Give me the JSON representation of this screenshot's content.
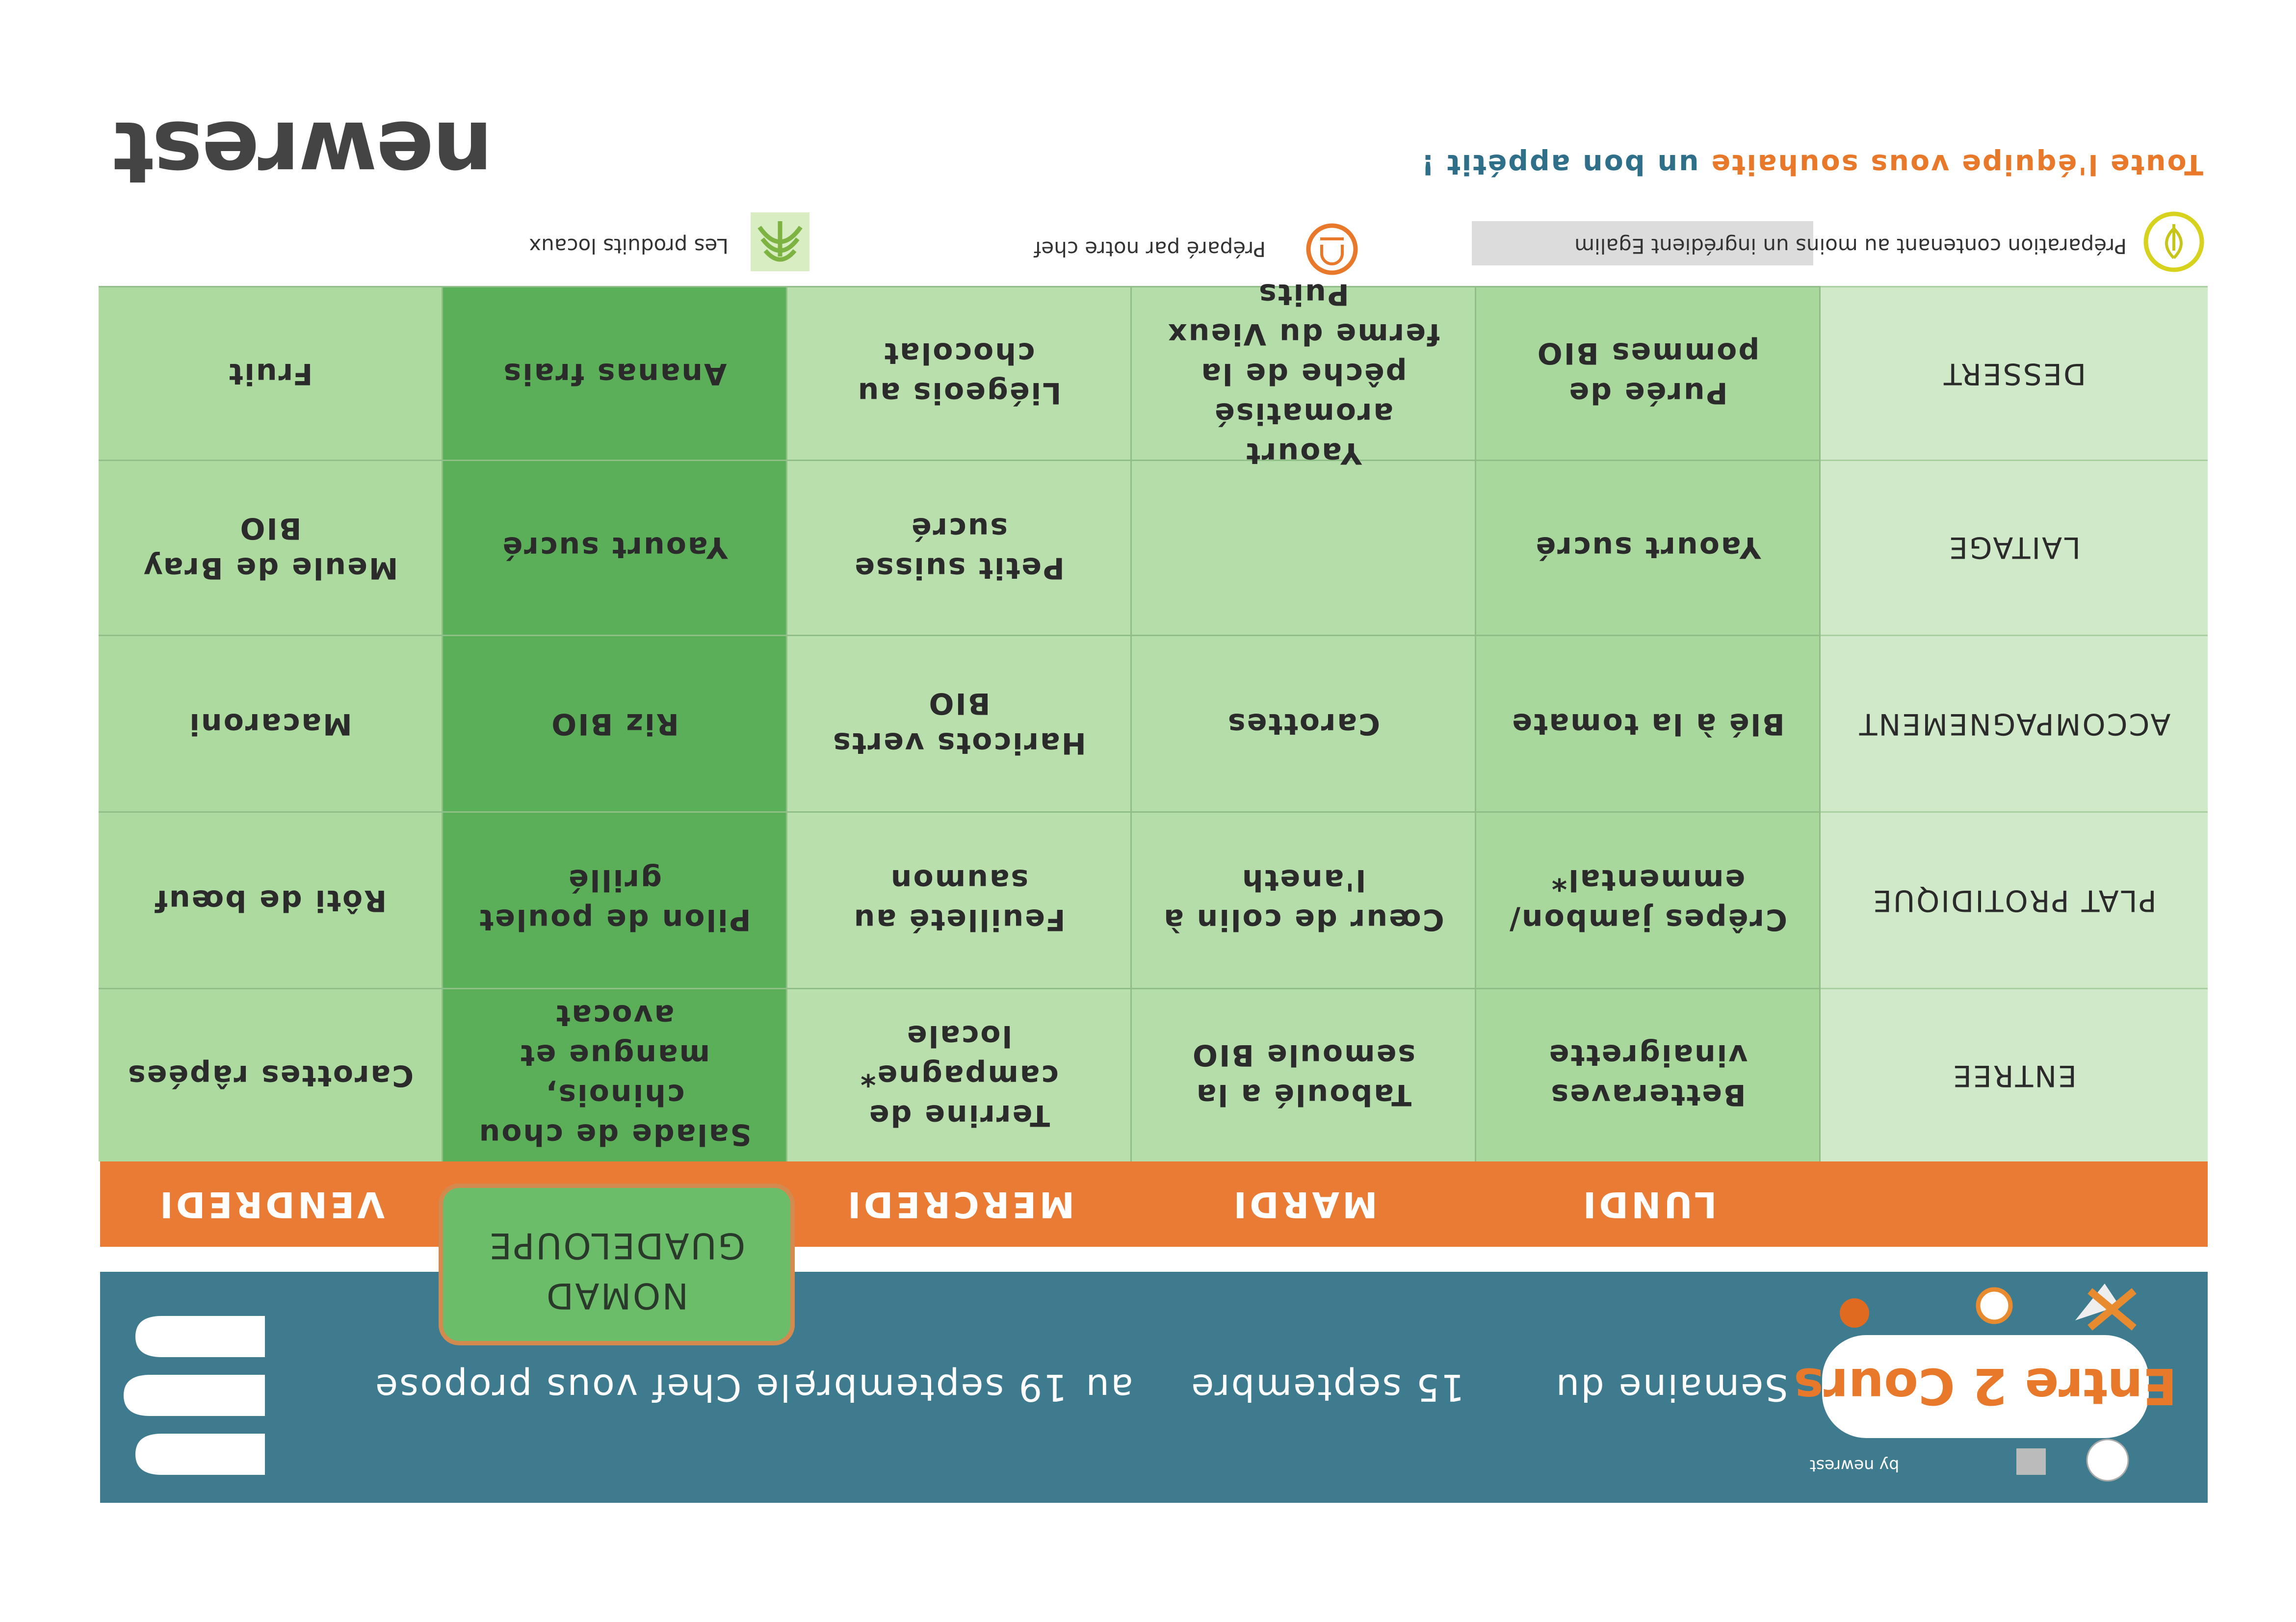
{
  "header": {
    "logo": "Entre 2 Cours",
    "logo_by": "by newrest",
    "week_label": "Semaine du",
    "start": "15 septembre",
    "to": "au",
    "end": "19 septembre",
    "tagline": ", le Chef vous propose",
    "tab": [
      "NOMAD",
      "GUADELOUPE"
    ]
  },
  "table": {
    "row_labels": [
      "ENTREE",
      "PLAT PROTIDIQUE",
      "ACCOMPAGNEMENT",
      "LAITAGE",
      "DESSERT"
    ],
    "columns": [
      {
        "day": "LUNDI",
        "color": "#a9d89d",
        "cells": [
          "Betteraves vinaigrette",
          "Crêpes jambon/ emmental*",
          "Blé à la tomate",
          "Yaourt sucré",
          "Purée de pommes BIO"
        ]
      },
      {
        "day": "MARDI",
        "color": "#b5ddaa",
        "cells": [
          "Taboulé a la semoule BIO",
          "Cœur de colin à l'aneth",
          "Carottes",
          null,
          "Yaourt aromatisé pêche de la ferme du Vieux Puits"
        ]
      },
      {
        "day": "MERCREDI",
        "color": "#b8dfac",
        "cells": [
          "Terrine de campagne* locale",
          "Feuilleté au saumon",
          "Haricots verts BIO",
          "Petit suisse sucré",
          "Liégeois au chocolat"
        ]
      },
      {
        "color": "#5aaf58",
        "cells": [
          "Salade de chou chinois, mangue et avocat",
          "Pilon de poulet grillé",
          "Riz BIO",
          "Yaourt sucré",
          "Ananas frais"
        ]
      },
      {
        "day": "VENDREDI",
        "color": "#acda9f",
        "cells": [
          "Carottes râpées",
          "Rôti de bœuf",
          "Macaroni",
          "Meule de Bray BIO",
          "Fruit"
        ]
      }
    ]
  },
  "legend": [
    "Préparation contenant au moins un ingrédient Egalim",
    "Préparé par notre chef",
    "Les produits locaux"
  ],
  "footer": {
    "thanks": "Toute l'équipe vous souhaite",
    "thanks_highlight": "un bon appétit !",
    "brand": "newrest"
  }
}
